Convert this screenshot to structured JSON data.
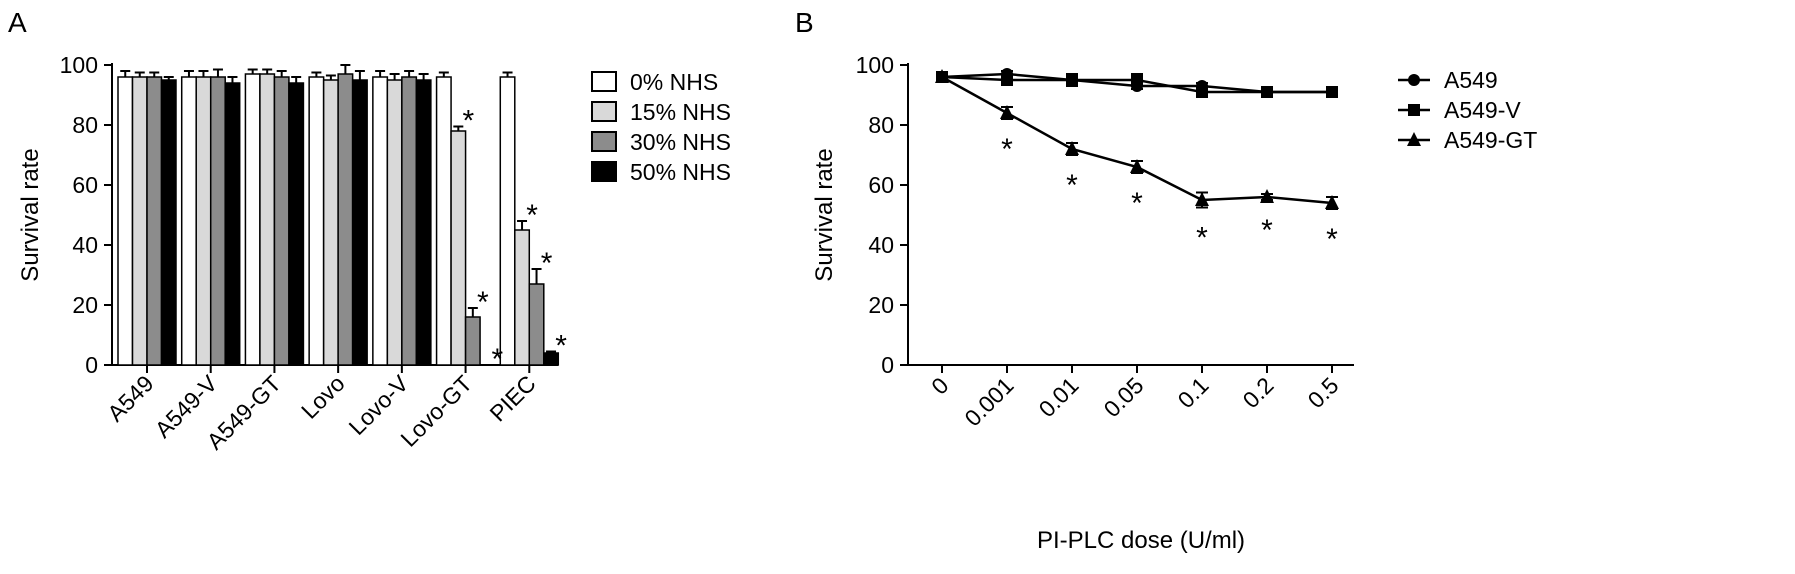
{
  "panels": [
    {
      "label": "A"
    },
    {
      "label": "B"
    }
  ],
  "chart_data": [
    {
      "type": "bar",
      "panel": "A",
      "ylabel": "Survival rate",
      "xlabel": "",
      "ylim": [
        0,
        100
      ],
      "yticks": [
        0,
        20,
        40,
        60,
        80,
        100
      ],
      "categories": [
        "A549",
        "A549-V",
        "A549-GT",
        "Lovo",
        "Lovo-V",
        "Lovo-GT",
        "PIEC"
      ],
      "legend_position": "right",
      "series": [
        {
          "name": "0% NHS",
          "color": "#ffffff",
          "values": [
            96,
            96,
            97,
            96,
            96,
            96,
            96
          ],
          "errors": [
            2,
            2,
            1.5,
            1.5,
            2,
            1.5,
            1.5
          ]
        },
        {
          "name": "15% NHS",
          "color": "#d9d9d9",
          "values": [
            96,
            96,
            97,
            95,
            95,
            78,
            45
          ],
          "errors": [
            1.5,
            2,
            1.5,
            1.5,
            2,
            1.5,
            3
          ]
        },
        {
          "name": "30% NHS",
          "color": "#8c8c8c",
          "values": [
            96,
            96,
            96,
            97,
            96,
            16,
            27
          ],
          "errors": [
            1.5,
            2.5,
            2,
            3,
            2,
            3,
            5
          ]
        },
        {
          "name": "50% NHS",
          "color": "#000000",
          "values": [
            95,
            94,
            94,
            95,
            95,
            0,
            4
          ],
          "errors": [
            1,
            2,
            2,
            3,
            2,
            0,
            0.5
          ]
        }
      ],
      "significance": [
        {
          "category": "Lovo-GT",
          "series": "15% NHS",
          "mark": "*"
        },
        {
          "category": "Lovo-GT",
          "series": "30% NHS",
          "mark": "*"
        },
        {
          "category": "Lovo-GT",
          "series": "50% NHS",
          "mark": "*"
        },
        {
          "category": "PIEC",
          "series": "15% NHS",
          "mark": "*"
        },
        {
          "category": "PIEC",
          "series": "30% NHS",
          "mark": "*"
        },
        {
          "category": "PIEC",
          "series": "50% NHS",
          "mark": "*"
        }
      ]
    },
    {
      "type": "line",
      "panel": "B",
      "ylabel": "Survival rate",
      "xlabel": "PI-PLC dose (U/ml)",
      "ylim": [
        0,
        100
      ],
      "yticks": [
        0,
        20,
        40,
        60,
        80,
        100
      ],
      "categories": [
        "0",
        "0.001",
        "0.01",
        "0.05",
        "0.1",
        "0.2",
        "0.5"
      ],
      "legend_position": "right",
      "series": [
        {
          "name": "A549",
          "marker": "circle",
          "values": [
            96,
            97,
            95,
            93,
            93,
            91,
            91
          ],
          "errors": [
            1,
            1,
            1,
            1,
            1,
            1,
            1
          ]
        },
        {
          "name": "A549-V",
          "marker": "square",
          "values": [
            96,
            95,
            95,
            95,
            91,
            91,
            91
          ],
          "errors": [
            1,
            1.5,
            2,
            2,
            1.5,
            1,
            1.5
          ]
        },
        {
          "name": "A549-GT",
          "marker": "triangle",
          "values": [
            96,
            84,
            72,
            66,
            55,
            56,
            54
          ],
          "errors": [
            1.5,
            2,
            2,
            2,
            2.5,
            1,
            2
          ]
        }
      ],
      "significance": [
        {
          "category": "0.001",
          "mark": "*"
        },
        {
          "category": "0.01",
          "mark": "*"
        },
        {
          "category": "0.05",
          "mark": "*"
        },
        {
          "category": "0.1",
          "mark": "*"
        },
        {
          "category": "0.2",
          "mark": "*"
        },
        {
          "category": "0.5",
          "mark": "*"
        }
      ]
    }
  ]
}
